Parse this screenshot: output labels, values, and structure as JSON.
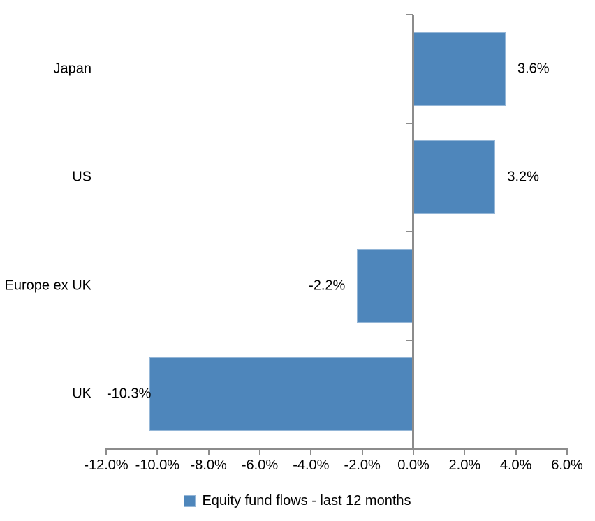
{
  "chart_data": {
    "type": "bar",
    "orientation": "horizontal",
    "title": "",
    "categories": [
      "Japan",
      "US",
      "Europe ex UK",
      "UK"
    ],
    "values": [
      3.6,
      3.2,
      -2.2,
      -10.3
    ],
    "value_labels": [
      "3.6%",
      "3.2%",
      "-2.2%",
      "-10.3%"
    ],
    "xlim": [
      -12,
      6
    ],
    "x_tick_values": [
      -12,
      -10,
      -8,
      -6,
      -4,
      -2,
      0,
      2,
      4,
      6
    ],
    "x_tick_labels": [
      "-12.0%",
      "-10.0%",
      "-8.0%",
      "-6.0%",
      "-4.0%",
      "-2.0%",
      "0.0%",
      "2.0%",
      "4.0%",
      "6.0%"
    ],
    "grid": false,
    "legend_position": "bottom-center",
    "legend": [
      {
        "label": "Equity fund flows - last 12 months",
        "color": "#4e86bb"
      }
    ],
    "colors": {
      "bar": "#4e86bb",
      "bar_border": "#94b6d7",
      "axis": "#8c8c8c",
      "text": "#000000"
    }
  }
}
